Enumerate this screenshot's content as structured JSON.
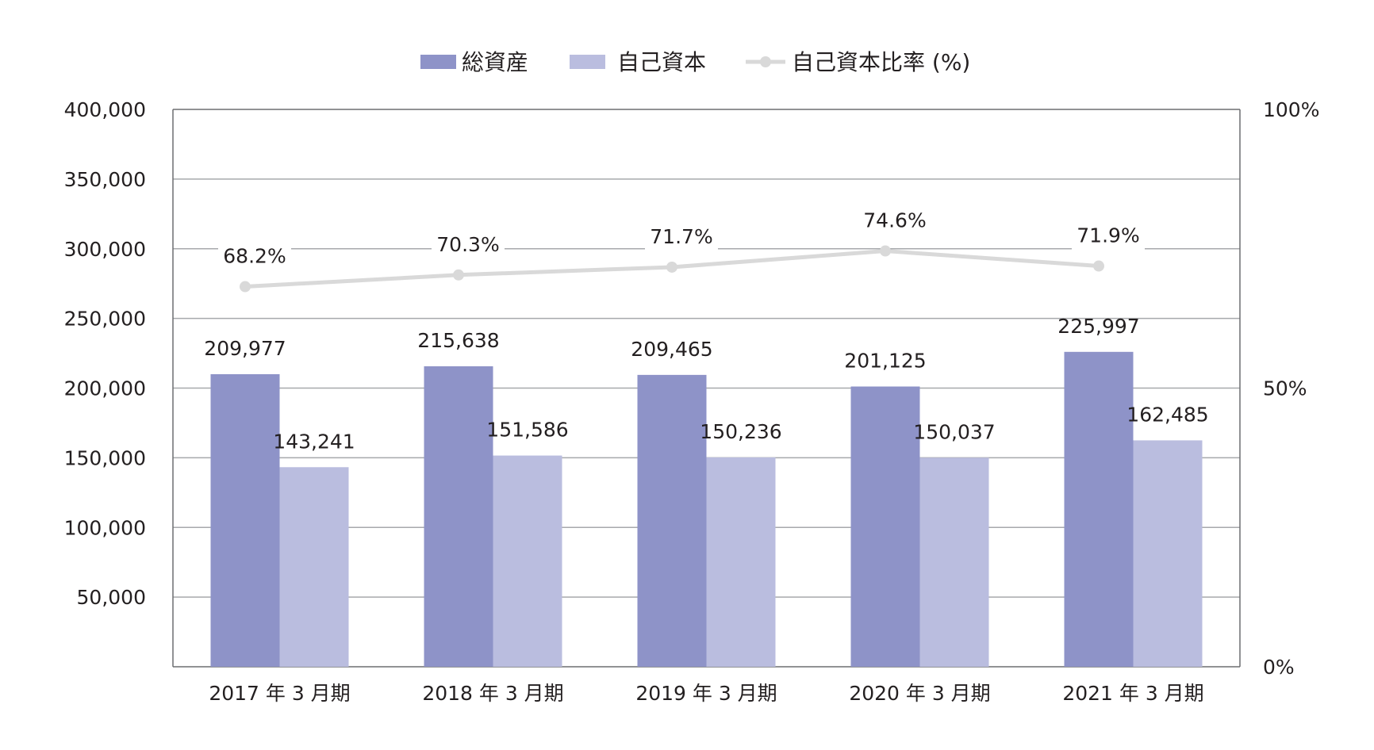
{
  "chart_data": {
    "type": "bar",
    "categories": [
      "2017 年 3 月期",
      "2018 年 3 月期",
      "2019 年 3 月期",
      "2020 年 3 月期",
      "2021 年 3 月期"
    ],
    "series": [
      {
        "name": "総資産",
        "type": "bar",
        "axis": "left",
        "color": "#8e93c8",
        "values": [
          209977,
          215638,
          209465,
          201125,
          225997
        ],
        "labels": [
          "209,977",
          "215,638",
          "209,465",
          "201,125",
          "225,997"
        ]
      },
      {
        "name": "自己資本",
        "type": "bar",
        "axis": "left",
        "color": "#babddf",
        "values": [
          143241,
          151586,
          150236,
          150037,
          162485
        ],
        "labels": [
          "143,241",
          "151,586",
          "150,236",
          "150,037",
          "162,485"
        ]
      },
      {
        "name": "自己資本比率 (%)",
        "type": "line",
        "axis": "right",
        "color": "#d9d9d9",
        "values": [
          68.2,
          70.3,
          71.7,
          74.6,
          71.9
        ],
        "labels": [
          "68.2%",
          "70.3%",
          "71.7%",
          "74.6%",
          "71.9%"
        ]
      }
    ],
    "y_left": {
      "ylim": [
        0,
        400000
      ],
      "ticks": [
        50000,
        100000,
        150000,
        200000,
        250000,
        300000,
        350000,
        400000
      ],
      "tick_labels": [
        "50,000",
        "100,000",
        "150,000",
        "200,000",
        "250,000",
        "300,000",
        "350,000",
        "400,000"
      ]
    },
    "y_right": {
      "ylim": [
        0,
        100
      ],
      "ticks": [
        0,
        50,
        100
      ],
      "tick_labels": [
        "0%",
        "50%",
        "100%"
      ]
    },
    "grid": true,
    "legend_position": "top-center",
    "axis_color": "#6d6e71",
    "grid_color": "#a7a9ac"
  }
}
